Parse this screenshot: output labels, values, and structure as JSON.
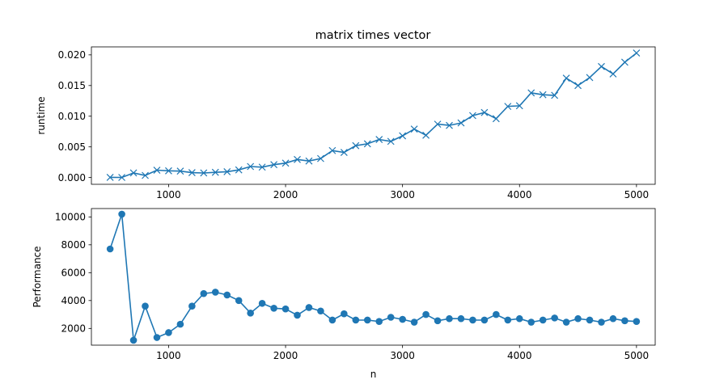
{
  "figure": {
    "title": "matrix times vector",
    "line_color": "#1f77b4"
  },
  "chart_data": [
    {
      "type": "line",
      "marker": "x",
      "title": "matrix times vector",
      "xlabel": "",
      "ylabel": "runtime",
      "xlim": [
        340,
        5160
      ],
      "ylim": [
        -0.0011,
        0.0213
      ],
      "xticks": [
        1000,
        2000,
        3000,
        4000,
        5000
      ],
      "yticks": [
        0.0,
        0.005,
        0.01,
        0.015,
        0.02
      ],
      "xtick_labels": [
        "1000",
        "2000",
        "3000",
        "4000",
        "5000"
      ],
      "ytick_labels": [
        "0.000",
        "0.005",
        "0.010",
        "0.015",
        "0.020"
      ],
      "grid": false,
      "x": [
        500,
        600,
        700,
        800,
        900,
        1000,
        1100,
        1200,
        1300,
        1400,
        1500,
        1600,
        1700,
        1800,
        1900,
        2000,
        2100,
        2200,
        2300,
        2400,
        2500,
        2600,
        2700,
        2800,
        2900,
        3000,
        3100,
        3200,
        3300,
        3400,
        3500,
        3600,
        3700,
        3800,
        3900,
        4000,
        4100,
        4200,
        4300,
        4400,
        4500,
        4600,
        4700,
        4800,
        4900,
        5000
      ],
      "y": [
        3e-05,
        2e-05,
        0.00075,
        0.00035,
        0.0012,
        0.0011,
        0.00105,
        0.0008,
        0.00075,
        0.00085,
        0.00095,
        0.00125,
        0.0018,
        0.0017,
        0.0021,
        0.00235,
        0.00295,
        0.0027,
        0.0031,
        0.0044,
        0.0041,
        0.0052,
        0.0055,
        0.0062,
        0.0059,
        0.0068,
        0.0079,
        0.0069,
        0.0087,
        0.0085,
        0.0089,
        0.0101,
        0.0106,
        0.0096,
        0.0116,
        0.0117,
        0.0138,
        0.0135,
        0.0134,
        0.0162,
        0.015,
        0.0163,
        0.0181,
        0.0169,
        0.0188,
        0.0203
      ]
    },
    {
      "type": "line",
      "marker": "o",
      "xlabel": "n",
      "ylabel": "Performance",
      "xlim": [
        340,
        5160
      ],
      "ylim": [
        800,
        10600
      ],
      "xticks": [
        1000,
        2000,
        3000,
        4000,
        5000
      ],
      "yticks": [
        2000,
        4000,
        6000,
        8000,
        10000
      ],
      "xtick_labels": [
        "1000",
        "2000",
        "3000",
        "4000",
        "5000"
      ],
      "ytick_labels": [
        "2000",
        "4000",
        "6000",
        "8000",
        "10000"
      ],
      "grid": false,
      "x": [
        500,
        600,
        700,
        800,
        900,
        1000,
        1100,
        1200,
        1300,
        1400,
        1500,
        1600,
        1700,
        1800,
        1900,
        2000,
        2100,
        2200,
        2300,
        2400,
        2500,
        2600,
        2700,
        2800,
        2900,
        3000,
        3100,
        3200,
        3300,
        3400,
        3500,
        3600,
        3700,
        3800,
        3900,
        4000,
        4100,
        4200,
        4300,
        4400,
        4500,
        4600,
        4700,
        4800,
        4900,
        5000
      ],
      "y": [
        7700,
        10200,
        1150,
        3600,
        1350,
        1700,
        2300,
        3600,
        4500,
        4600,
        4400,
        4000,
        3100,
        3800,
        3450,
        3400,
        2950,
        3500,
        3250,
        2600,
        3050,
        2600,
        2600,
        2500,
        2800,
        2650,
        2450,
        3000,
        2550,
        2700,
        2700,
        2600,
        2600,
        3000,
        2600,
        2700,
        2450,
        2600,
        2750,
        2450,
        2700,
        2600,
        2450,
        2700,
        2550,
        2500
      ]
    }
  ]
}
